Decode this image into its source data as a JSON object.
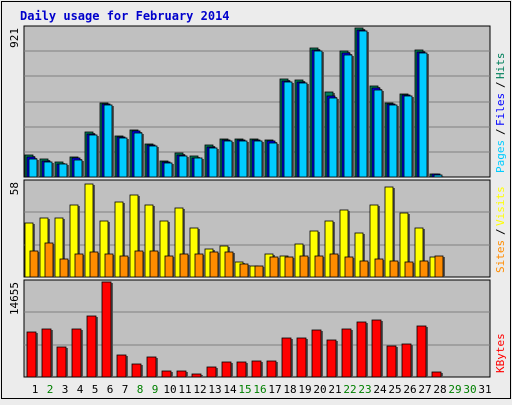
{
  "title": "Daily usage for February 2014",
  "colors": {
    "background": "#c0c0c0",
    "title": "#0000cc",
    "hits": "#00805c",
    "files": "#0000ff",
    "pages": "#00ccff",
    "visits": "#ffff00",
    "sites": "#ff8c00",
    "kbytes": "#ff0000",
    "weekday": "#008000",
    "weekend": "#008080"
  },
  "chart_data": [
    {
      "type": "bar",
      "panel": "hits-files-pages",
      "ymax_label": "921",
      "ylim": [
        0,
        921
      ],
      "grid": true,
      "legend_position": "right (vertical text)",
      "legend": [
        {
          "name": "Pages",
          "color": "#00ccff"
        },
        {
          "name": "Files",
          "color": "#0000ff"
        },
        {
          "name": "Hits",
          "color": "#00805c"
        }
      ],
      "categories": [
        "1",
        "2",
        "3",
        "4",
        "5",
        "6",
        "7",
        "8",
        "9",
        "10",
        "11",
        "12",
        "13",
        "14",
        "15",
        "16",
        "17",
        "18",
        "19",
        "20",
        "21",
        "22",
        "23",
        "24",
        "25",
        "26",
        "27",
        "28",
        "29",
        "30",
        "31"
      ],
      "series": [
        {
          "name": "Hits",
          "values": [
            133,
            110,
            92,
            124,
            277,
            460,
            255,
            289,
            203,
            100,
            146,
            128,
            195,
            236,
            236,
            233,
            229,
            607,
            601,
            800,
            523,
            780,
            921,
            560,
            460,
            516,
            788,
            20,
            0,
            0,
            0
          ]
        },
        {
          "name": "Files",
          "values": [
            122,
            100,
            82,
            116,
            267,
            454,
            250,
            282,
            195,
            92,
            136,
            120,
            184,
            226,
            229,
            229,
            220,
            594,
            590,
            787,
            499,
            768,
            911,
            552,
            452,
            506,
            775,
            17,
            0,
            0,
            0
          ]
        },
        {
          "name": "Pages",
          "values": [
            110,
            91,
            78,
            104,
            260,
            445,
            243,
            275,
            190,
            87,
            130,
            115,
            178,
            220,
            225,
            225,
            213,
            585,
            580,
            780,
            488,
            755,
            900,
            540,
            445,
            500,
            765,
            14,
            0,
            0,
            0
          ]
        }
      ]
    },
    {
      "type": "bar",
      "panel": "visits-sites",
      "ymax_label": "58",
      "ylim": [
        0,
        58
      ],
      "grid": true,
      "legend_position": "right (vertical text)",
      "legend": [
        {
          "name": "Sites",
          "color": "#ff8c00"
        },
        {
          "name": "Visits",
          "color": "#ffff00"
        }
      ],
      "categories": [
        "1",
        "2",
        "3",
        "4",
        "5",
        "6",
        "7",
        "8",
        "9",
        "10",
        "11",
        "12",
        "13",
        "14",
        "15",
        "16",
        "17",
        "18",
        "19",
        "20",
        "21",
        "22",
        "23",
        "24",
        "25",
        "26",
        "27",
        "28",
        "29",
        "30",
        "31"
      ],
      "series": [
        {
          "name": "Visits",
          "values": [
            33,
            36,
            36,
            44,
            57,
            34,
            46,
            50,
            44,
            34,
            42,
            30,
            17,
            19,
            9,
            7,
            14,
            13,
            20,
            28,
            34,
            41,
            27,
            44,
            55,
            39,
            30,
            12,
            0,
            0,
            0
          ]
        },
        {
          "name": "Sites",
          "values": [
            16,
            21,
            11,
            14,
            15,
            14,
            13,
            16,
            16,
            13,
            14,
            14,
            15,
            15,
            8,
            7,
            12,
            12,
            13,
            13,
            14,
            12,
            10,
            11,
            10,
            9,
            10,
            13,
            0,
            0,
            0
          ]
        }
      ]
    },
    {
      "type": "bar",
      "panel": "kbytes",
      "ymax_label": "14655",
      "ylim": [
        0,
        14655
      ],
      "grid": true,
      "legend_position": "right (vertical text)",
      "legend": [
        {
          "name": "KBytes",
          "color": "#ff0000"
        }
      ],
      "categories": [
        "1",
        "2",
        "3",
        "4",
        "5",
        "6",
        "7",
        "8",
        "9",
        "10",
        "11",
        "12",
        "13",
        "14",
        "15",
        "16",
        "17",
        "18",
        "19",
        "20",
        "21",
        "22",
        "23",
        "24",
        "25",
        "26",
        "27",
        "28",
        "29",
        "30",
        "31"
      ],
      "series": [
        {
          "name": "KBytes",
          "values": [
            6880,
            7455,
            4680,
            7455,
            9450,
            14655,
            3335,
            2000,
            3080,
            870,
            850,
            470,
            1530,
            2360,
            2360,
            2480,
            2460,
            6000,
            6040,
            7280,
            5660,
            7440,
            8440,
            8800,
            4750,
            5120,
            7880,
            800,
            0,
            0,
            0
          ]
        }
      ]
    }
  ],
  "days": [
    {
      "label": "1",
      "weekend": false
    },
    {
      "label": "2",
      "weekend": true
    },
    {
      "label": "3",
      "weekend": false
    },
    {
      "label": "4",
      "weekend": false
    },
    {
      "label": "5",
      "weekend": false
    },
    {
      "label": "6",
      "weekend": false
    },
    {
      "label": "7",
      "weekend": false
    },
    {
      "label": "8",
      "weekend": true
    },
    {
      "label": "9",
      "weekend": true
    },
    {
      "label": "10",
      "weekend": false
    },
    {
      "label": "11",
      "weekend": false
    },
    {
      "label": "12",
      "weekend": false
    },
    {
      "label": "13",
      "weekend": false
    },
    {
      "label": "14",
      "weekend": false
    },
    {
      "label": "15",
      "weekend": true
    },
    {
      "label": "16",
      "weekend": true
    },
    {
      "label": "17",
      "weekend": false
    },
    {
      "label": "18",
      "weekend": false
    },
    {
      "label": "19",
      "weekend": false
    },
    {
      "label": "20",
      "weekend": false
    },
    {
      "label": "21",
      "weekend": false
    },
    {
      "label": "22",
      "weekend": true
    },
    {
      "label": "23",
      "weekend": true
    },
    {
      "label": "24",
      "weekend": false
    },
    {
      "label": "25",
      "weekend": false
    },
    {
      "label": "26",
      "weekend": false
    },
    {
      "label": "27",
      "weekend": false
    },
    {
      "label": "28",
      "weekend": false
    },
    {
      "label": "29",
      "weekend": true
    },
    {
      "label": "30",
      "weekend": true
    },
    {
      "label": "31",
      "weekend": false
    }
  ]
}
